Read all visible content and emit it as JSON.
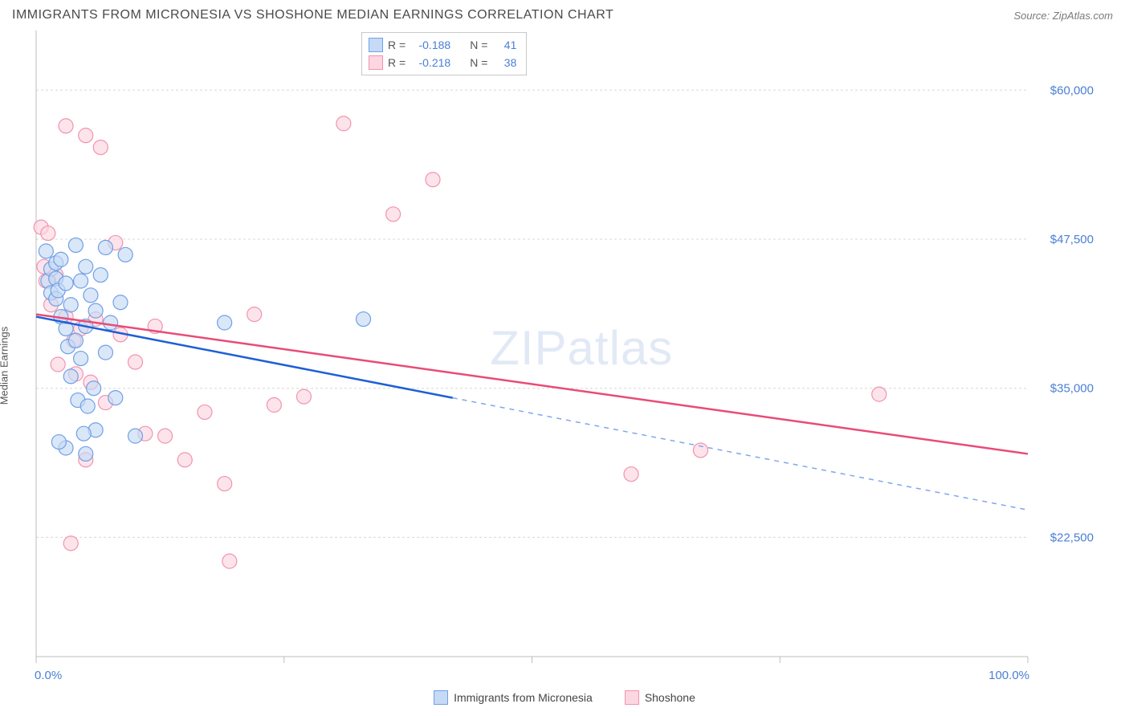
{
  "title": "IMMIGRANTS FROM MICRONESIA VS SHOSHONE MEDIAN EARNINGS CORRELATION CHART",
  "source": "Source: ZipAtlas.com",
  "watermark": "ZIPatlas",
  "ylabel": "Median Earnings",
  "chart": {
    "type": "scatter",
    "xlim": [
      0,
      100
    ],
    "ylim": [
      12500,
      65000
    ],
    "y_ticks": [
      22500,
      35000,
      47500,
      60000
    ],
    "y_tick_labels": [
      "$22,500",
      "$35,000",
      "$47,500",
      "$60,000"
    ],
    "x_ticks": [
      0,
      25,
      50,
      75,
      100
    ],
    "x_end_labels": [
      "0.0%",
      "100.0%"
    ],
    "grid_color": "#d8d8d8",
    "axis_color": "#bdbdbd",
    "background": "#ffffff",
    "marker_radius": 9,
    "marker_stroke_width": 1.2,
    "series": [
      {
        "name": "Immigrants from Micronesia",
        "fill": "#c6daf5",
        "stroke": "#6fa0e6",
        "fill_opacity": 0.65,
        "R": "-0.188",
        "N": "41",
        "trend": {
          "x1": 0,
          "y1": 41000,
          "x2": 42,
          "y2": 34200,
          "x2_dash": 100,
          "y2_dash": 24800
        },
        "points": [
          {
            "x": 1,
            "y": 46500
          },
          {
            "x": 1.2,
            "y": 44000
          },
          {
            "x": 1.5,
            "y": 45000
          },
          {
            "x": 1.5,
            "y": 43000
          },
          {
            "x": 2,
            "y": 45500
          },
          {
            "x": 2,
            "y": 44200
          },
          {
            "x": 2,
            "y": 42500
          },
          {
            "x": 2.2,
            "y": 43200
          },
          {
            "x": 2.5,
            "y": 45800
          },
          {
            "x": 2.5,
            "y": 41000
          },
          {
            "x": 3,
            "y": 43800
          },
          {
            "x": 3,
            "y": 40000
          },
          {
            "x": 3.2,
            "y": 38500
          },
          {
            "x": 3.5,
            "y": 42000
          },
          {
            "x": 3.5,
            "y": 36000
          },
          {
            "x": 4,
            "y": 47000
          },
          {
            "x": 4,
            "y": 39000
          },
          {
            "x": 4.2,
            "y": 34000
          },
          {
            "x": 4.5,
            "y": 44000
          },
          {
            "x": 4.5,
            "y": 37500
          },
          {
            "x": 5,
            "y": 45200
          },
          {
            "x": 5,
            "y": 40200
          },
          {
            "x": 5.2,
            "y": 33500
          },
          {
            "x": 5.5,
            "y": 42800
          },
          {
            "x": 5.8,
            "y": 35000
          },
          {
            "x": 6,
            "y": 41500
          },
          {
            "x": 6,
            "y": 31500
          },
          {
            "x": 6.5,
            "y": 44500
          },
          {
            "x": 7,
            "y": 46800
          },
          {
            "x": 7,
            "y": 38000
          },
          {
            "x": 7.5,
            "y": 40500
          },
          {
            "x": 8,
            "y": 34200
          },
          {
            "x": 8.5,
            "y": 42200
          },
          {
            "x": 9,
            "y": 46200
          },
          {
            "x": 10,
            "y": 31000
          },
          {
            "x": 3,
            "y": 30000
          },
          {
            "x": 5,
            "y": 29500
          },
          {
            "x": 19,
            "y": 40500
          },
          {
            "x": 33,
            "y": 40800
          },
          {
            "x": 2.3,
            "y": 30500
          },
          {
            "x": 4.8,
            "y": 31200
          }
        ]
      },
      {
        "name": "Shoshone",
        "fill": "#fcd6e0",
        "stroke": "#f193af",
        "fill_opacity": 0.65,
        "R": "-0.218",
        "N": "38",
        "trend": {
          "x1": 0,
          "y1": 41200,
          "x2": 100,
          "y2": 29500
        },
        "points": [
          {
            "x": 0.5,
            "y": 48500
          },
          {
            "x": 0.8,
            "y": 45200
          },
          {
            "x": 1,
            "y": 44000
          },
          {
            "x": 1.5,
            "y": 42000
          },
          {
            "x": 2,
            "y": 44500
          },
          {
            "x": 2.2,
            "y": 37000
          },
          {
            "x": 3,
            "y": 57000
          },
          {
            "x": 3,
            "y": 41000
          },
          {
            "x": 3.5,
            "y": 22000
          },
          {
            "x": 3.8,
            "y": 39000
          },
          {
            "x": 4,
            "y": 36200
          },
          {
            "x": 4.5,
            "y": 40000
          },
          {
            "x": 5,
            "y": 56200
          },
          {
            "x": 5,
            "y": 29000
          },
          {
            "x": 5.5,
            "y": 35500
          },
          {
            "x": 6,
            "y": 40800
          },
          {
            "x": 6.5,
            "y": 55200
          },
          {
            "x": 7,
            "y": 33800
          },
          {
            "x": 8,
            "y": 47200
          },
          {
            "x": 8.5,
            "y": 39500
          },
          {
            "x": 10,
            "y": 37200
          },
          {
            "x": 11,
            "y": 31200
          },
          {
            "x": 12,
            "y": 40200
          },
          {
            "x": 13,
            "y": 31000
          },
          {
            "x": 15,
            "y": 29000
          },
          {
            "x": 17,
            "y": 33000
          },
          {
            "x": 19,
            "y": 27000
          },
          {
            "x": 19.5,
            "y": 20500
          },
          {
            "x": 22,
            "y": 41200
          },
          {
            "x": 24,
            "y": 33600
          },
          {
            "x": 27,
            "y": 34300
          },
          {
            "x": 31,
            "y": 57200
          },
          {
            "x": 36,
            "y": 49600
          },
          {
            "x": 40,
            "y": 52500
          },
          {
            "x": 60,
            "y": 27800
          },
          {
            "x": 67,
            "y": 29800
          },
          {
            "x": 85,
            "y": 34500
          },
          {
            "x": 1.2,
            "y": 48000
          }
        ]
      }
    ]
  },
  "stats_box": {
    "r_label": "R =",
    "n_label": "N ="
  }
}
